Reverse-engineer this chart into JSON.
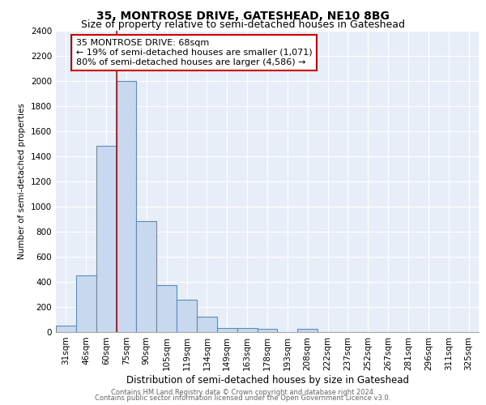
{
  "title1": "35, MONTROSE DRIVE, GATESHEAD, NE10 8BG",
  "title2": "Size of property relative to semi-detached houses in Gateshead",
  "xlabel": "Distribution of semi-detached houses by size in Gateshead",
  "ylabel": "Number of semi-detached properties",
  "annotation_line1": "35 MONTROSE DRIVE: 68sqm",
  "annotation_line2": "← 19% of semi-detached houses are smaller (1,071)",
  "annotation_line3": "80% of semi-detached houses are larger (4,586) →",
  "footer1": "Contains HM Land Registry data © Crown copyright and database right 2024.",
  "footer2": "Contains public sector information licensed under the Open Government Licence v3.0.",
  "property_size_sqm": 68,
  "categories": [
    "31sqm",
    "46sqm",
    "60sqm",
    "75sqm",
    "90sqm",
    "105sqm",
    "119sqm",
    "134sqm",
    "149sqm",
    "163sqm",
    "178sqm",
    "193sqm",
    "208sqm",
    "222sqm",
    "237sqm",
    "252sqm",
    "267sqm",
    "281sqm",
    "296sqm",
    "311sqm",
    "325sqm"
  ],
  "values": [
    50,
    450,
    1480,
    2000,
    880,
    375,
    255,
    125,
    30,
    35,
    25,
    0,
    25,
    0,
    0,
    0,
    0,
    0,
    0,
    0,
    0
  ],
  "bar_fill_color": "#c8d8ee",
  "bar_edge_color": "#5b8db8",
  "property_line_color": "#cc0000",
  "annotation_box_edge_color": "#cc0000",
  "annotation_text_color": "#000000",
  "plot_bg_color": "#e8eef8",
  "fig_bg_color": "#ffffff",
  "grid_color": "#ffffff",
  "ylim": [
    0,
    2400
  ],
  "yticks": [
    0,
    200,
    400,
    600,
    800,
    1000,
    1200,
    1400,
    1600,
    1800,
    2000,
    2200,
    2400
  ],
  "title1_fontsize": 10,
  "title2_fontsize": 9,
  "annotation_fontsize": 8,
  "axis_fontsize": 7.5,
  "xlabel_fontsize": 8.5,
  "ylabel_fontsize": 7.5,
  "footer_fontsize": 6
}
